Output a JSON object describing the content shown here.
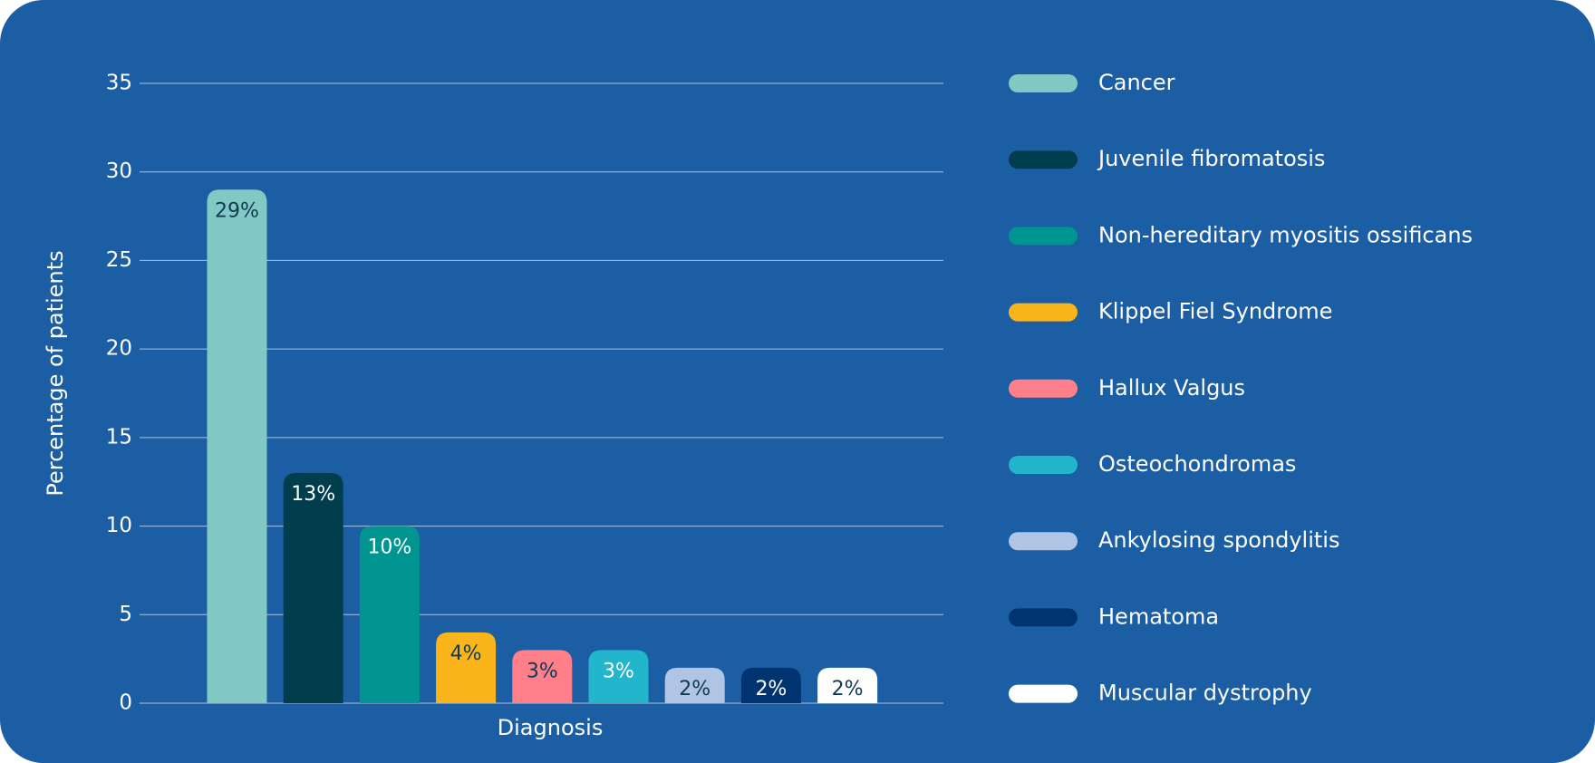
{
  "chart_data": {
    "type": "bar",
    "x_label": "Diagnosis",
    "y_label": "Percentage of patients",
    "categories": [
      "Cancer",
      "Juvenile fibromatosis",
      "Non-hereditary myositis ossificans",
      "Klippel Fiel Syndrome",
      "Hallux Valgus",
      "Osteochondromas",
      "Ankylosing spondylitis",
      "Hematoma",
      "Muscular dystrophy"
    ],
    "values": [
      29,
      13,
      10,
      4,
      3,
      3,
      2,
      2,
      2
    ],
    "value_labels": [
      "29%",
      "13%",
      "10%",
      "4%",
      "3%",
      "3%",
      "2%",
      "2%",
      "2%"
    ],
    "colors": [
      "#82c9c5",
      "#003d4d",
      "#009590",
      "#fbb41a",
      "#ff808a",
      "#23b5cc",
      "#b0c4e5",
      "#003470",
      "#ffffff"
    ],
    "ylim": [
      0,
      35
    ],
    "yticks": [
      0,
      5,
      10,
      15,
      20,
      25,
      30,
      35
    ],
    "grid": true,
    "legend": "right"
  }
}
